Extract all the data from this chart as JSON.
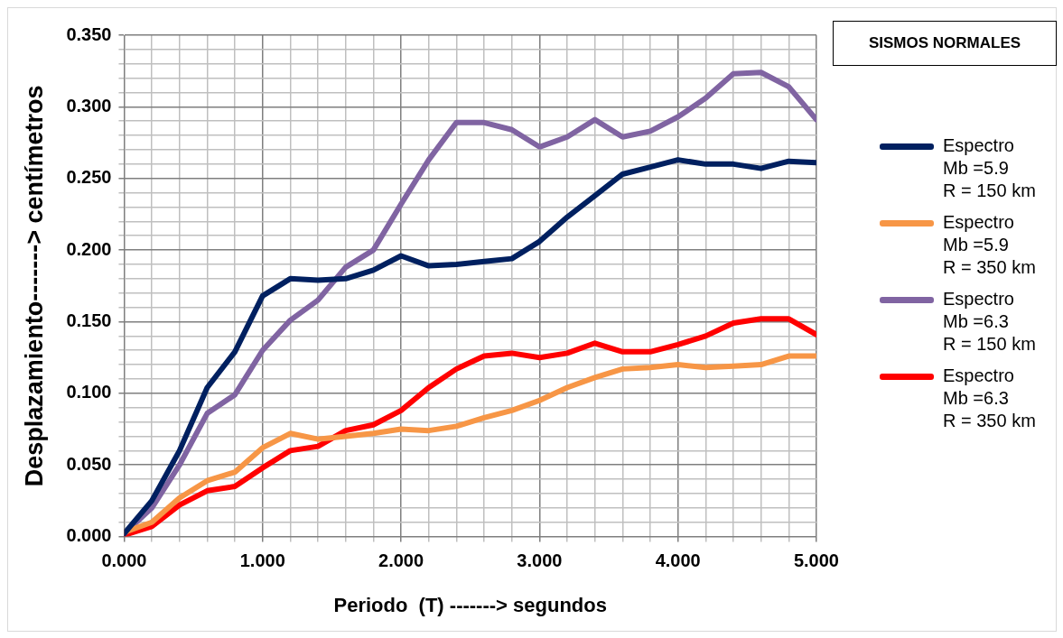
{
  "chart_data": {
    "type": "line",
    "title": "SISMOS NORMALES",
    "xlabel": "Periodo  (T) -------> segundos",
    "ylabel": "Desplazamiento-------> centímetros",
    "x": [
      0,
      0.2,
      0.4,
      0.6,
      0.8,
      1.0,
      1.2,
      1.4,
      1.6,
      1.8,
      2.0,
      2.2,
      2.4,
      2.6,
      2.8,
      3.0,
      3.2,
      3.4,
      3.6,
      3.8,
      4.0,
      4.2,
      4.4,
      4.6,
      4.8,
      5.0
    ],
    "series": [
      {
        "name": "Espectro\nMb =5.9\nR = 150 km",
        "color": "#002060",
        "values": [
          0.002,
          0.025,
          0.06,
          0.104,
          0.129,
          0.168,
          0.18,
          0.179,
          0.18,
          0.186,
          0.196,
          0.189,
          0.19,
          0.192,
          0.194,
          0.206,
          0.223,
          0.238,
          0.253,
          0.258,
          0.263,
          0.26,
          0.26,
          0.257,
          0.262,
          0.261
        ]
      },
      {
        "name": "Espectro\nMb =5.9\nR = 350 km",
        "color": "#f79646",
        "values": [
          0.003,
          0.01,
          0.027,
          0.039,
          0.045,
          0.062,
          0.072,
          0.068,
          0.07,
          0.072,
          0.075,
          0.074,
          0.077,
          0.083,
          0.088,
          0.095,
          0.104,
          0.111,
          0.117,
          0.118,
          0.12,
          0.118,
          0.119,
          0.12,
          0.126,
          0.126
        ]
      },
      {
        "name": "Espectro\nMb =6.3\nR = 150 km",
        "color": "#8064a2",
        "values": [
          0.002,
          0.02,
          0.05,
          0.086,
          0.099,
          0.13,
          0.151,
          0.165,
          0.188,
          0.2,
          0.232,
          0.263,
          0.289,
          0.289,
          0.284,
          0.272,
          0.279,
          0.291,
          0.279,
          0.283,
          0.293,
          0.306,
          0.323,
          0.324,
          0.314,
          0.291
        ]
      },
      {
        "name": "Espectro\nMb =6.3\nR = 350 km",
        "color": "#ff0000",
        "values": [
          0.001,
          0.007,
          0.022,
          0.032,
          0.035,
          0.048,
          0.06,
          0.063,
          0.074,
          0.078,
          0.088,
          0.104,
          0.117,
          0.126,
          0.128,
          0.125,
          0.128,
          0.135,
          0.129,
          0.129,
          0.134,
          0.14,
          0.149,
          0.152,
          0.152,
          0.141
        ]
      }
    ],
    "xlim": [
      0,
      5
    ],
    "xticks": [
      {
        "value": 0,
        "label": "0.000"
      },
      {
        "value": 0.2,
        "label": null
      },
      {
        "value": 0.4,
        "label": null
      },
      {
        "value": 0.6,
        "label": null
      },
      {
        "value": 0.8,
        "label": null
      },
      {
        "value": 1,
        "label": "1.000"
      },
      {
        "value": 1.2,
        "label": null
      },
      {
        "value": 1.4,
        "label": null
      },
      {
        "value": 1.6,
        "label": null
      },
      {
        "value": 1.8,
        "label": null
      },
      {
        "value": 2,
        "label": "2.000"
      },
      {
        "value": 2.2,
        "label": null
      },
      {
        "value": 2.4,
        "label": null
      },
      {
        "value": 2.6,
        "label": null
      },
      {
        "value": 2.8,
        "label": null
      },
      {
        "value": 3,
        "label": "3.000"
      },
      {
        "value": 3.2,
        "label": null
      },
      {
        "value": 3.4,
        "label": null
      },
      {
        "value": 3.6,
        "label": null
      },
      {
        "value": 3.8,
        "label": null
      },
      {
        "value": 4,
        "label": "4.000"
      },
      {
        "value": 4.2,
        "label": null
      },
      {
        "value": 4.4,
        "label": null
      },
      {
        "value": 4.6,
        "label": null
      },
      {
        "value": 4.8,
        "label": null
      },
      {
        "value": 5,
        "label": "5.000"
      }
    ],
    "ylim": [
      0,
      0.35
    ],
    "yticks": [
      {
        "value": 0,
        "label": "0.000"
      },
      {
        "value": 0.01,
        "label": null
      },
      {
        "value": 0.02,
        "label": null
      },
      {
        "value": 0.03,
        "label": null
      },
      {
        "value": 0.04,
        "label": null
      },
      {
        "value": 0.05,
        "label": "0.050"
      },
      {
        "value": 0.06,
        "label": null
      },
      {
        "value": 0.07,
        "label": null
      },
      {
        "value": 0.08,
        "label": null
      },
      {
        "value": 0.09,
        "label": null
      },
      {
        "value": 0.1,
        "label": "0.100"
      },
      {
        "value": 0.11,
        "label": null
      },
      {
        "value": 0.12,
        "label": null
      },
      {
        "value": 0.13,
        "label": null
      },
      {
        "value": 0.14,
        "label": null
      },
      {
        "value": 0.15,
        "label": "0.150"
      },
      {
        "value": 0.16,
        "label": null
      },
      {
        "value": 0.17,
        "label": null
      },
      {
        "value": 0.18,
        "label": null
      },
      {
        "value": 0.19,
        "label": null
      },
      {
        "value": 0.2,
        "label": "0.200"
      },
      {
        "value": 0.21,
        "label": null
      },
      {
        "value": 0.22,
        "label": null
      },
      {
        "value": 0.23,
        "label": null
      },
      {
        "value": 0.24,
        "label": null
      },
      {
        "value": 0.25,
        "label": "0.250"
      },
      {
        "value": 0.26,
        "label": null
      },
      {
        "value": 0.27,
        "label": null
      },
      {
        "value": 0.28,
        "label": null
      },
      {
        "value": 0.29,
        "label": null
      },
      {
        "value": 0.3,
        "label": "0.300"
      },
      {
        "value": 0.31,
        "label": null
      },
      {
        "value": 0.32,
        "label": null
      },
      {
        "value": 0.33,
        "label": null
      },
      {
        "value": 0.34,
        "label": null
      },
      {
        "value": 0.35,
        "label": "0.350"
      }
    ],
    "grid": true,
    "legend": "right",
    "marker": "none",
    "line_style": "solid"
  }
}
